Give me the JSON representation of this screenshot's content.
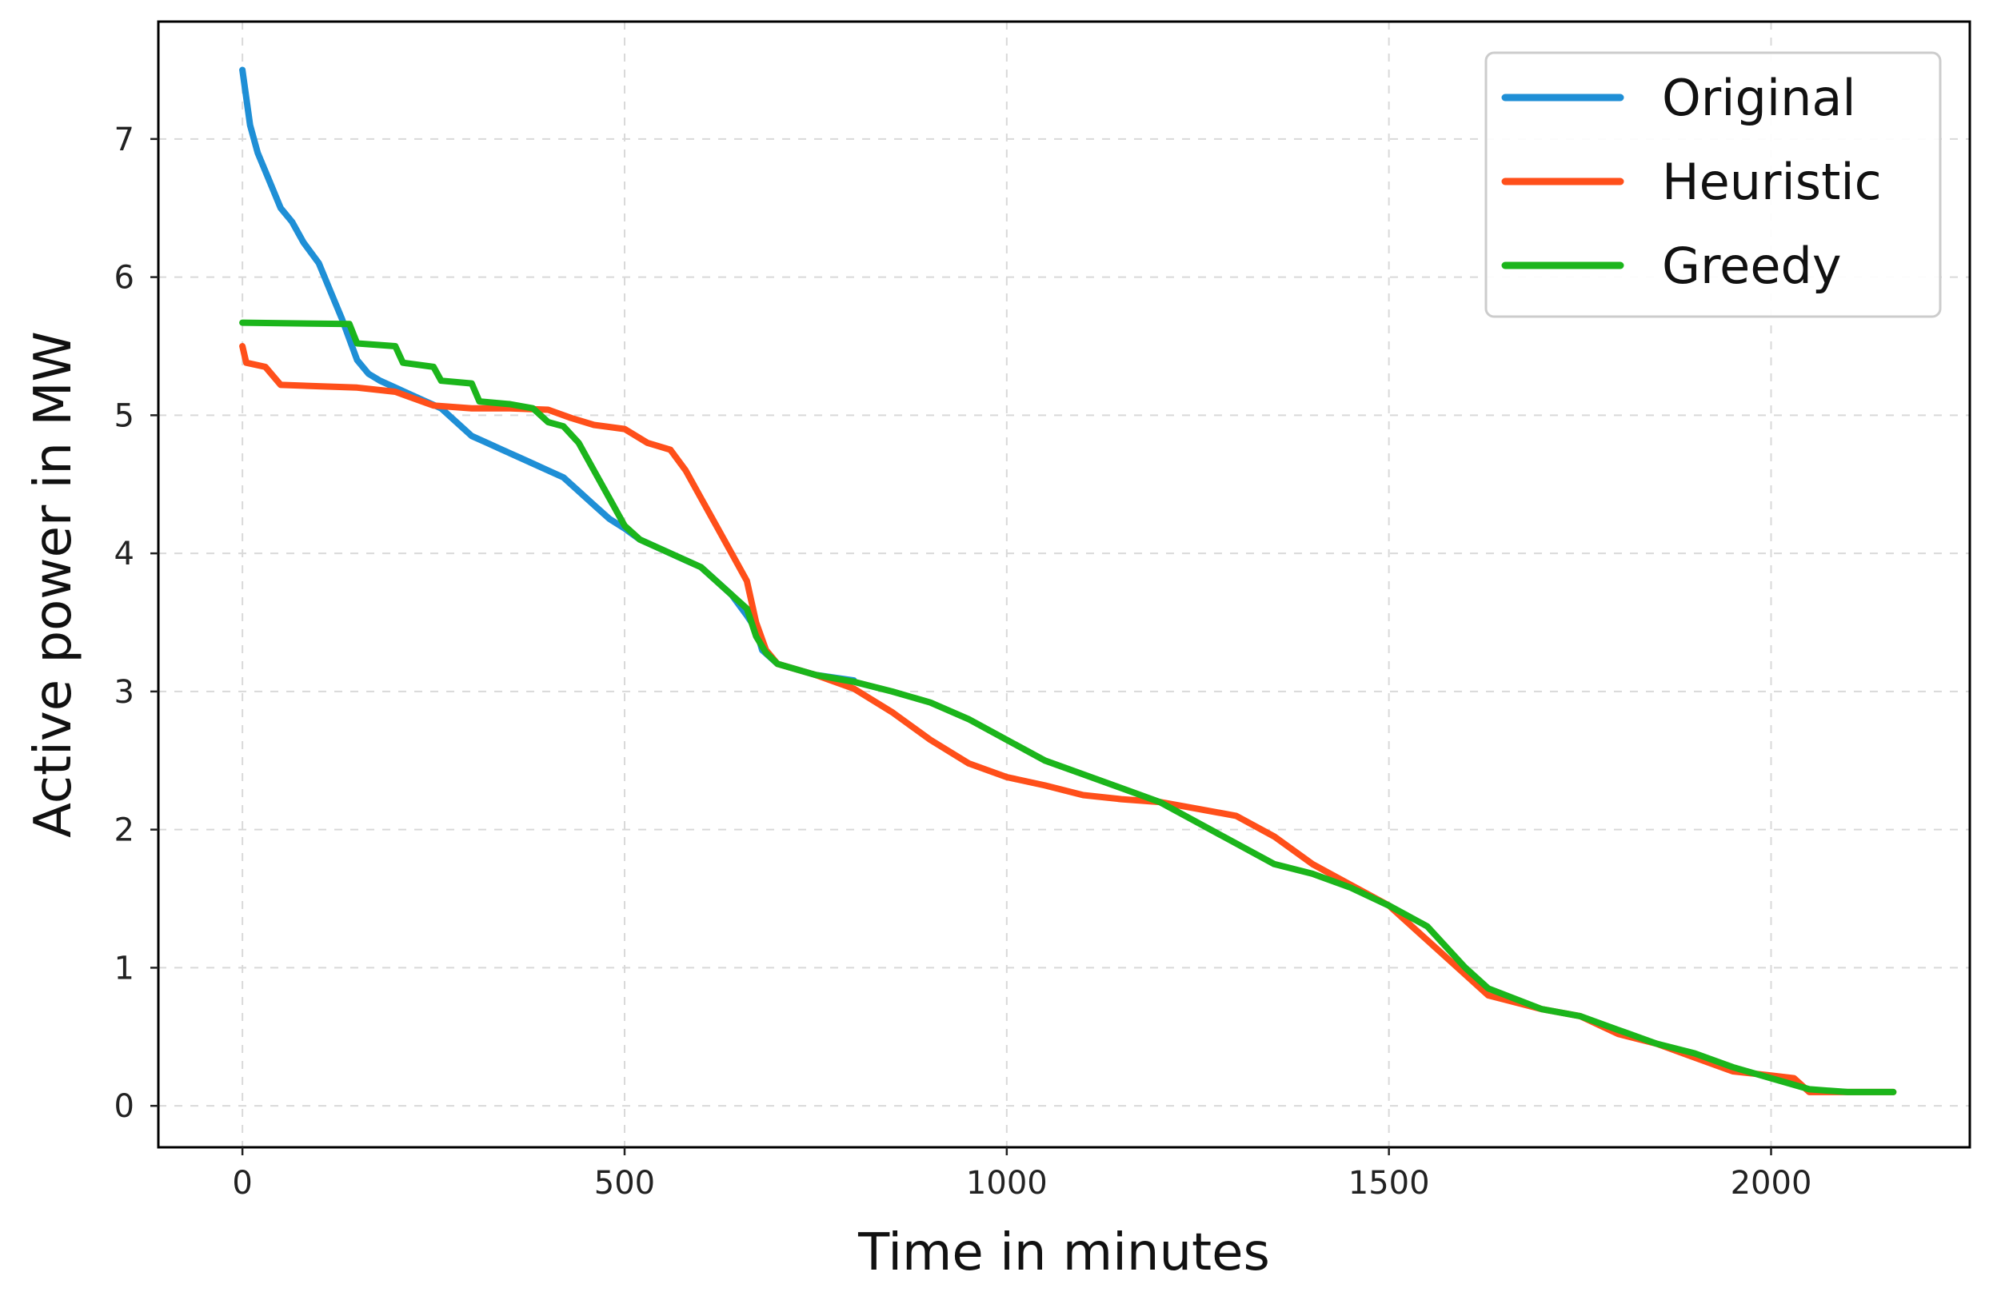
{
  "chart_data": {
    "type": "line",
    "title": "",
    "xlabel": "Time in minutes",
    "ylabel": "Active power in MW",
    "xlim": [
      -110,
      2260
    ],
    "ylim": [
      -0.3,
      7.85
    ],
    "xticks": [
      0,
      500,
      1000,
      1500,
      2000
    ],
    "xtick_labels": [
      "0",
      "500",
      "1000",
      "1500",
      "2000"
    ],
    "yticks": [
      0,
      1,
      2,
      3,
      4,
      5,
      6,
      7
    ],
    "ytick_labels": [
      "0",
      "1",
      "2",
      "3",
      "4",
      "5",
      "6",
      "7"
    ],
    "grid": true,
    "legend_position": "top-right",
    "series": [
      {
        "name": "Original",
        "color": "#1f8fd6",
        "x": [
          0,
          5,
          10,
          20,
          35,
          50,
          65,
          80,
          100,
          115,
          130,
          140,
          150,
          165,
          180,
          200,
          220,
          240,
          260,
          280,
          300,
          320,
          340,
          360,
          380,
          400,
          420,
          440,
          460,
          480,
          500,
          520,
          540,
          560,
          580,
          600,
          620,
          640,
          660,
          672,
          680,
          700,
          750,
          800
        ],
        "y": [
          7.5,
          7.3,
          7.1,
          6.9,
          6.7,
          6.5,
          6.4,
          6.25,
          6.1,
          5.9,
          5.7,
          5.55,
          5.4,
          5.3,
          5.25,
          5.2,
          5.15,
          5.1,
          5.05,
          4.95,
          4.85,
          4.8,
          4.75,
          4.7,
          4.65,
          4.6,
          4.55,
          4.45,
          4.35,
          4.25,
          4.18,
          4.1,
          4.05,
          4.0,
          3.95,
          3.9,
          3.8,
          3.7,
          3.55,
          3.45,
          3.3,
          3.2,
          3.12,
          3.08
        ]
      },
      {
        "name": "Heuristic",
        "color": "#ff4f1a",
        "x": [
          0,
          5,
          30,
          50,
          100,
          150,
          200,
          250,
          300,
          350,
          400,
          430,
          460,
          500,
          530,
          560,
          580,
          600,
          620,
          640,
          660,
          672,
          685,
          700,
          750,
          800,
          850,
          900,
          950,
          1000,
          1050,
          1100,
          1150,
          1200,
          1250,
          1300,
          1350,
          1400,
          1450,
          1500,
          1550,
          1600,
          1630,
          1700,
          1750,
          1800,
          1850,
          1900,
          1950,
          2000,
          2030,
          2050,
          2100,
          2160
        ],
        "y": [
          5.5,
          5.38,
          5.35,
          5.22,
          5.21,
          5.2,
          5.17,
          5.07,
          5.05,
          5.05,
          5.04,
          4.98,
          4.93,
          4.9,
          4.8,
          4.75,
          4.6,
          4.4,
          4.2,
          4.0,
          3.8,
          3.5,
          3.3,
          3.2,
          3.12,
          3.02,
          2.85,
          2.65,
          2.48,
          2.38,
          2.32,
          2.25,
          2.22,
          2.2,
          2.15,
          2.1,
          1.95,
          1.75,
          1.6,
          1.45,
          1.2,
          0.95,
          0.8,
          0.7,
          0.65,
          0.52,
          0.45,
          0.35,
          0.25,
          0.22,
          0.2,
          0.1,
          0.1,
          0.1
        ]
      },
      {
        "name": "Greedy",
        "color": "#1bb51b",
        "x": [
          0,
          140,
          150,
          200,
          210,
          250,
          260,
          300,
          310,
          350,
          380,
          400,
          420,
          440,
          460,
          480,
          500,
          520,
          560,
          600,
          630,
          660,
          672,
          685,
          700,
          750,
          800,
          850,
          900,
          950,
          1000,
          1050,
          1100,
          1150,
          1200,
          1250,
          1300,
          1350,
          1400,
          1450,
          1500,
          1550,
          1600,
          1630,
          1700,
          1750,
          1800,
          1850,
          1900,
          1950,
          2000,
          2050,
          2100,
          2160
        ],
        "y": [
          5.67,
          5.66,
          5.52,
          5.5,
          5.38,
          5.35,
          5.25,
          5.23,
          5.1,
          5.08,
          5.05,
          4.95,
          4.92,
          4.8,
          4.6,
          4.4,
          4.2,
          4.1,
          4.0,
          3.9,
          3.75,
          3.6,
          3.4,
          3.28,
          3.2,
          3.12,
          3.07,
          3.0,
          2.92,
          2.8,
          2.65,
          2.5,
          2.4,
          2.3,
          2.2,
          2.05,
          1.9,
          1.75,
          1.68,
          1.58,
          1.45,
          1.3,
          1.0,
          0.85,
          0.7,
          0.65,
          0.55,
          0.45,
          0.38,
          0.28,
          0.2,
          0.12,
          0.1,
          0.1
        ]
      }
    ]
  }
}
